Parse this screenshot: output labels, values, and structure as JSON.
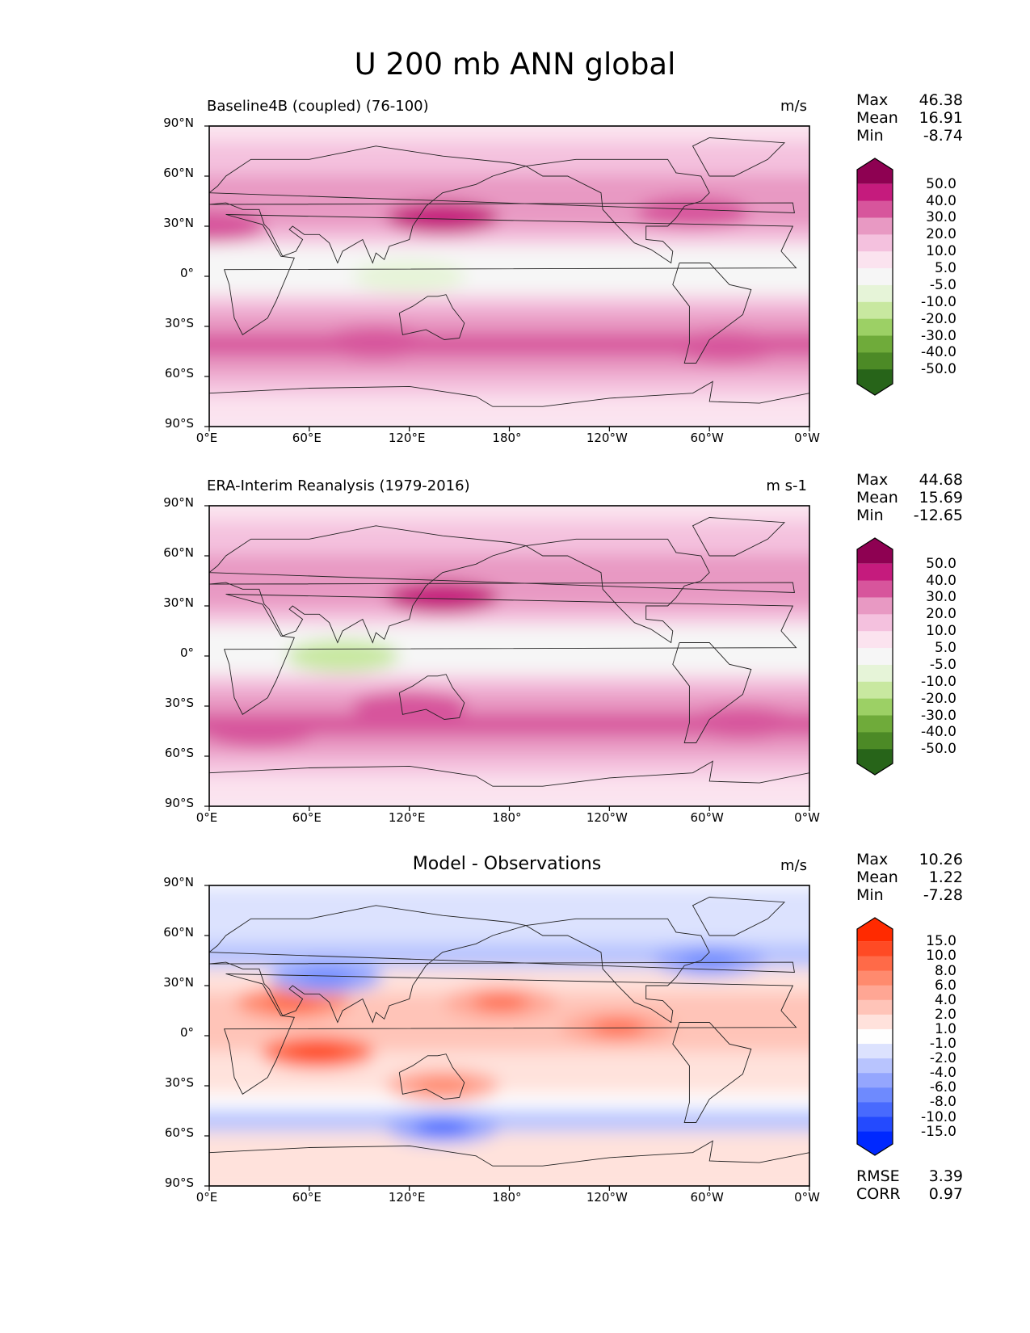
{
  "suptitle": "U 200 mb ANN global",
  "chart_data": [
    {
      "type": "heatmap",
      "title_left": "Baseline4B (coupled) (76-100)",
      "title_right": "m/s",
      "stats": {
        "max_label": "Max",
        "max": "46.38",
        "mean_label": "Mean",
        "mean": "16.91",
        "min_label": "Min",
        "min": "-8.74"
      },
      "ylabels": [
        "90°N",
        "60°N",
        "30°N",
        "0°",
        "30°S",
        "60°S",
        "90°S"
      ],
      "xlabels": [
        "0°E",
        "60°E",
        "120°E",
        "180°",
        "120°W",
        "60°W",
        "0°W"
      ],
      "colorbar": {
        "levels": [
          "50.0",
          "40.0",
          "30.0",
          "20.0",
          "10.0",
          "5.0",
          "-5.0",
          "-10.0",
          "-20.0",
          "-30.0",
          "-40.0",
          "-50.0"
        ],
        "colors": [
          "#8e0152",
          "#c51b7d",
          "#d7559c",
          "#e899c3",
          "#f4c1de",
          "#fbe3ef",
          "#f6f6f6",
          "#e6f4d8",
          "#c8e8a0",
          "#9cd065",
          "#6fab3a",
          "#4c8a26",
          "#276419"
        ]
      },
      "field_features": [
        {
          "lon": 0,
          "lat": 30,
          "value": 30
        },
        {
          "lon": 140,
          "lat": 35,
          "value": 42
        },
        {
          "lon": 290,
          "lat": 38,
          "value": 35
        },
        {
          "lon": 120,
          "lat": 0,
          "value": -7
        },
        {
          "lon": 100,
          "lat": -40,
          "value": 32
        },
        {
          "lon": 310,
          "lat": -42,
          "value": 32
        }
      ]
    },
    {
      "type": "heatmap",
      "title_left": "ERA-Interim Reanalysis (1979-2016)",
      "title_right": "m s-1",
      "stats": {
        "max_label": "Max",
        "max": "44.68",
        "mean_label": "Mean",
        "mean": "15.69",
        "min_label": "Min",
        "min": "-12.65"
      },
      "ylabels": [
        "90°N",
        "60°N",
        "30°N",
        "0°",
        "30°S",
        "60°S",
        "90°S"
      ],
      "xlabels": [
        "0°E",
        "60°E",
        "120°E",
        "180°",
        "120°W",
        "60°W",
        "0°W"
      ],
      "colorbar": {
        "levels": [
          "50.0",
          "40.0",
          "30.0",
          "20.0",
          "10.0",
          "5.0",
          "-5.0",
          "-10.0",
          "-20.0",
          "-30.0",
          "-40.0",
          "-50.0"
        ],
        "colors": [
          "#8e0152",
          "#c51b7d",
          "#d7559c",
          "#e899c3",
          "#f4c1de",
          "#fbe3ef",
          "#f6f6f6",
          "#e6f4d8",
          "#c8e8a0",
          "#9cd065",
          "#6fab3a",
          "#4c8a26",
          "#276419"
        ]
      },
      "field_features": [
        {
          "lon": 140,
          "lat": 35,
          "value": 42
        },
        {
          "lon": 80,
          "lat": 0,
          "value": -12
        },
        {
          "lon": 120,
          "lat": -30,
          "value": 32
        },
        {
          "lon": 30,
          "lat": -45,
          "value": 32
        },
        {
          "lon": 320,
          "lat": -40,
          "value": 32
        }
      ]
    },
    {
      "type": "heatmap",
      "title_center": "Model - Observations",
      "title_right": "m/s",
      "stats": {
        "max_label": "Max",
        "max": "10.26",
        "mean_label": "Mean",
        "mean": "1.22",
        "min_label": "Min",
        "min": "-7.28"
      },
      "ylabels": [
        "90°N",
        "60°N",
        "30°N",
        "0°",
        "30°S",
        "60°S",
        "90°S"
      ],
      "xlabels": [
        "0°E",
        "60°E",
        "120°E",
        "180°",
        "120°W",
        "60°W",
        "0°W"
      ],
      "colorbar": {
        "levels": [
          "15.0",
          "10.0",
          "8.0",
          "6.0",
          "4.0",
          "2.0",
          "1.0",
          "-1.0",
          "-2.0",
          "-4.0",
          "-6.0",
          "-8.0",
          "-10.0",
          "-15.0"
        ],
        "colors": [
          "#ff2a00",
          "#ff4a24",
          "#ff6a48",
          "#ff8a6e",
          "#ffa694",
          "#ffc4b8",
          "#ffe2dc",
          "#fefefe",
          "#dce2fe",
          "#b8c4fe",
          "#94a6fe",
          "#6e8afe",
          "#486afe",
          "#244afe",
          "#0028ff"
        ]
      },
      "field_features": [
        {
          "lon": 65,
          "lat": -10,
          "value": 8
        },
        {
          "lon": 50,
          "lat": 20,
          "value": 6
        },
        {
          "lon": 175,
          "lat": 20,
          "value": 5
        },
        {
          "lon": 245,
          "lat": 5,
          "value": 5
        },
        {
          "lon": 140,
          "lat": -30,
          "value": 4
        },
        {
          "lon": 70,
          "lat": 35,
          "value": -5
        },
        {
          "lon": 140,
          "lat": -55,
          "value": -6
        },
        {
          "lon": 300,
          "lat": 45,
          "value": -5
        }
      ],
      "bottom_stats": {
        "rmse_label": "RMSE",
        "rmse": "3.39",
        "corr_label": "CORR",
        "corr": "0.97"
      }
    }
  ]
}
